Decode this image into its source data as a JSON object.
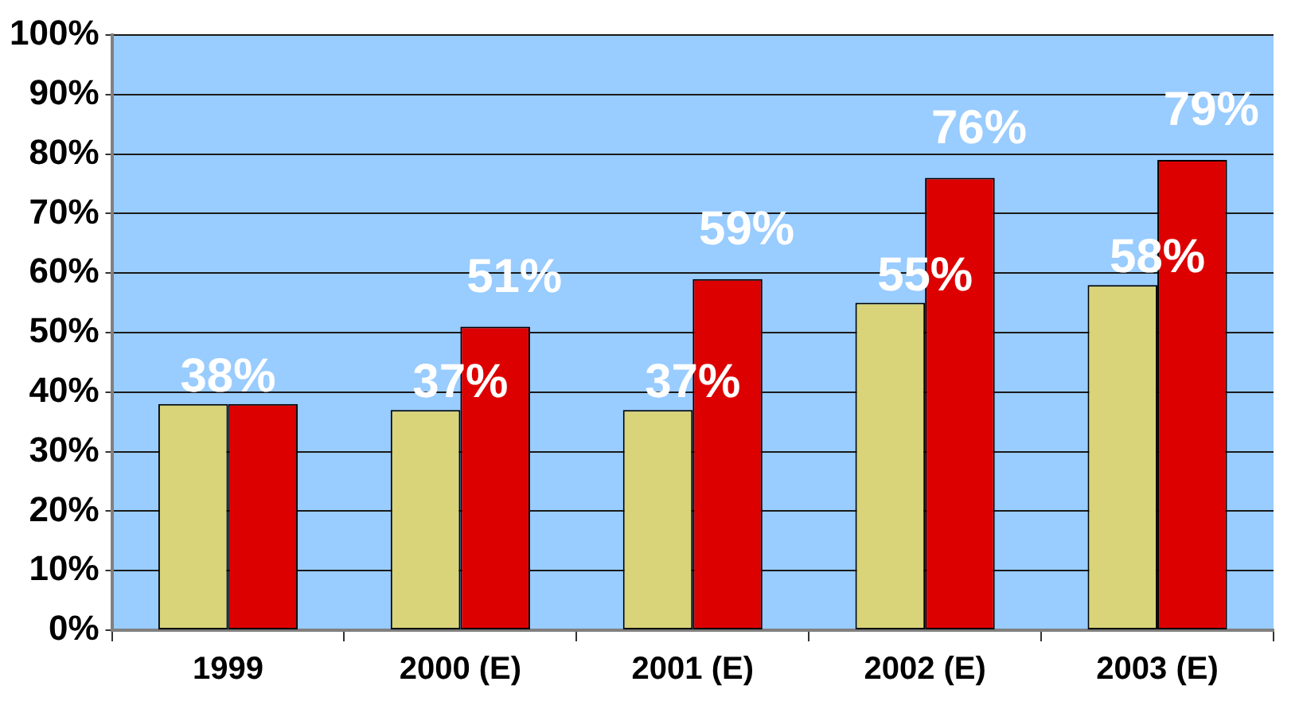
{
  "chart_data": {
    "type": "bar",
    "categories": [
      "1999",
      "2000 (E)",
      "2001 (E)",
      "2002 (E)",
      "2003 (E)"
    ],
    "series": [
      {
        "color": "#d9d47a",
        "values": [
          38,
          37,
          37,
          55,
          58
        ],
        "value_labels": [
          "38%",
          "37%",
          "37%",
          "55%",
          "58%"
        ]
      },
      {
        "color": "#dd0000",
        "values": [
          38,
          51,
          59,
          76,
          79
        ],
        "value_labels": [
          null,
          "51%",
          "59%",
          "76%",
          "79%"
        ]
      }
    ],
    "ylim": [
      0,
      100
    ],
    "yticks": [
      {
        "value": 0,
        "label": "0%"
      },
      {
        "value": 10,
        "label": "10%"
      },
      {
        "value": 20,
        "label": "20%"
      },
      {
        "value": 30,
        "label": "30%"
      },
      {
        "value": 40,
        "label": "40%"
      },
      {
        "value": 50,
        "label": "50%"
      },
      {
        "value": 60,
        "label": "60%"
      },
      {
        "value": 70,
        "label": "70%"
      },
      {
        "value": 80,
        "label": "80%"
      },
      {
        "value": 90,
        "label": "90%"
      },
      {
        "value": 100,
        "label": "100%"
      }
    ],
    "grid": "y",
    "legend": false
  }
}
